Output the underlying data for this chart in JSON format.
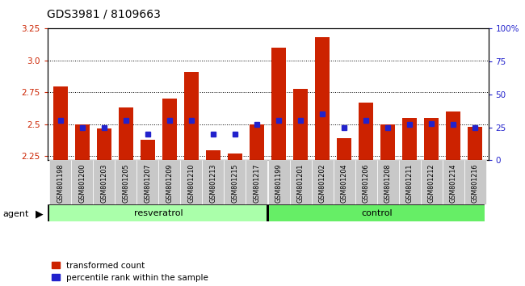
{
  "title": "GDS3981 / 8109663",
  "samples": [
    "GSM801198",
    "GSM801200",
    "GSM801203",
    "GSM801205",
    "GSM801207",
    "GSM801209",
    "GSM801210",
    "GSM801213",
    "GSM801215",
    "GSM801217",
    "GSM801199",
    "GSM801201",
    "GSM801202",
    "GSM801204",
    "GSM801206",
    "GSM801208",
    "GSM801211",
    "GSM801212",
    "GSM801214",
    "GSM801216"
  ],
  "bar_values": [
    2.8,
    2.5,
    2.47,
    2.63,
    2.38,
    2.7,
    2.91,
    2.3,
    2.27,
    2.5,
    3.1,
    2.78,
    3.18,
    2.39,
    2.67,
    2.5,
    2.55,
    2.55,
    2.6,
    2.48
  ],
  "blue_pct": [
    30,
    25,
    25,
    30,
    20,
    30,
    30,
    20,
    20,
    27,
    30,
    30,
    35,
    25,
    30,
    25,
    27,
    28,
    27,
    25
  ],
  "resveratrol_count": 10,
  "control_count": 10,
  "ymin": 2.22,
  "ymax": 3.25,
  "y_ticks": [
    2.25,
    2.5,
    2.75,
    3.0,
    3.25
  ],
  "y2_ticks_pct": [
    0,
    25,
    50,
    75,
    100
  ],
  "y2_tick_labels": [
    "0",
    "25",
    "50",
    "75",
    "100%"
  ],
  "bar_color": "#cc2200",
  "blue_color": "#2222cc",
  "grid_color": "#555555",
  "tick_bg_color": "#c8c8c8",
  "resv_color": "#aaffaa",
  "ctrl_color": "#66ee66",
  "agent_label": "agent",
  "resv_label": "resveratrol",
  "ctrl_label": "control",
  "legend_bar": "transformed count",
  "legend_blue": "percentile rank within the sample",
  "title_fontsize": 10,
  "left_tick_color": "#cc2200",
  "right_tick_color": "#2222cc"
}
